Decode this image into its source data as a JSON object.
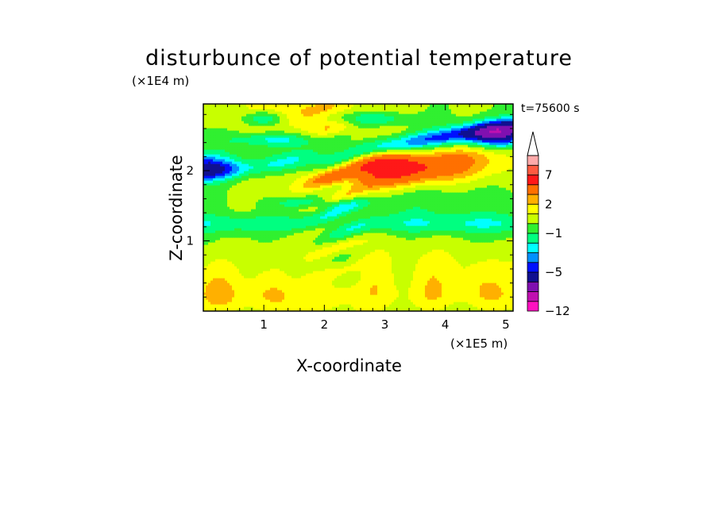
{
  "chart_data": {
    "type": "heatmap",
    "title": "disturbunce of potential temperature",
    "xlabel": "X-coordinate",
    "ylabel": "Z-coordinate",
    "x_unit": "(×1E5 m)",
    "y_unit": "(×1E4 m)",
    "annotation": "t=75600 s",
    "xlim": [
      0,
      5.12
    ],
    "ylim": [
      0,
      2.95
    ],
    "x_ticks": [
      1,
      2,
      3,
      4,
      5
    ],
    "y_ticks": [
      1,
      2
    ],
    "x_tick_labels": [
      "1",
      "2",
      "3",
      "4",
      "5"
    ],
    "y_tick_labels": [
      "1",
      "2"
    ],
    "colorbar": {
      "levels": [
        -12,
        -11,
        -9,
        -7,
        -5,
        -4,
        -3,
        -2,
        -1,
        0,
        1,
        2,
        3,
        5,
        7,
        8,
        9
      ],
      "colors": [
        "#ff10c0",
        "#c010b0",
        "#8010b0",
        "#101090",
        "#0010ff",
        "#0090ff",
        "#00ffff",
        "#00ff80",
        "#30f030",
        "#c8ff00",
        "#ffff00",
        "#ffb000",
        "#ff7000",
        "#ff1818",
        "#ff5a40",
        "#ffaaaa"
      ],
      "labeled_levels": [
        "7",
        "2",
        "−1",
        "−5",
        "−12"
      ],
      "extend_top_color": "#ffffff"
    }
  }
}
